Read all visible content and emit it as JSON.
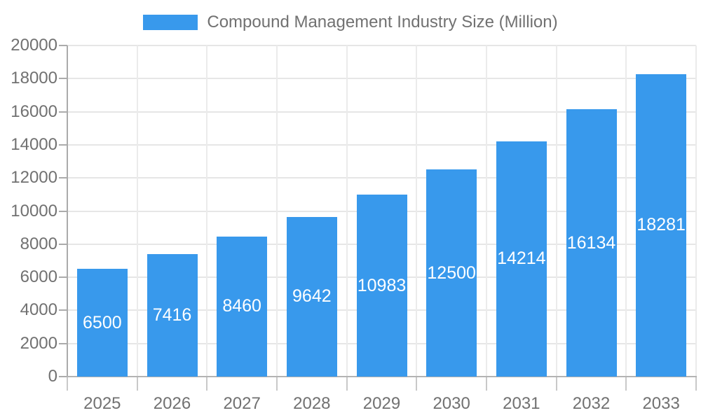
{
  "chart_data": {
    "type": "bar",
    "title": "Compound Management Industry Size (Million)",
    "legend_position": "top",
    "categories": [
      "2025",
      "2026",
      "2027",
      "2028",
      "2029",
      "2030",
      "2031",
      "2032",
      "2033"
    ],
    "series": [
      {
        "name": "Compound Management Industry Size (Million)",
        "values": [
          6500,
          7416,
          8460,
          9642,
          10983,
          12500,
          14214,
          16134,
          18281
        ]
      }
    ],
    "xlabel": "",
    "ylabel": "",
    "ylim": [
      0,
      20000
    ],
    "ytick_step": 2000,
    "ytick_labels": [
      "0",
      "2000",
      "4000",
      "6000",
      "8000",
      "10000",
      "12000",
      "14000",
      "16000",
      "18000",
      "20000"
    ],
    "grid": true,
    "value_labels": "inside-center",
    "colors": {
      "bar": "#3899ec",
      "bar_value_text": "#ffffff",
      "axis_text": "#717171",
      "legend_text": "#717171",
      "gridline_h": "#e6e6e6",
      "gridline_v": "#ebebeb",
      "axis_line": "#ababab",
      "x_axis_line": "#b3b3b3",
      "tick_x": "#c9c9c9",
      "background": "#ffffff"
    }
  }
}
